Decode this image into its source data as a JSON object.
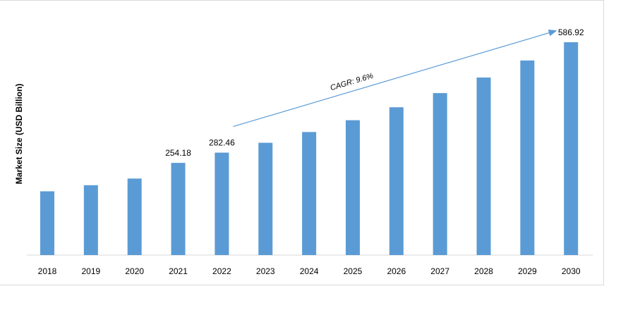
{
  "chart_data": {
    "type": "bar",
    "title": "",
    "xlabel": "",
    "ylabel": "Market Size (USD Billion)",
    "categories": [
      "2018",
      "2019",
      "2020",
      "2021",
      "2022",
      "2023",
      "2024",
      "2025",
      "2026",
      "2027",
      "2028",
      "2029",
      "2030"
    ],
    "values": [
      175.8,
      192.6,
      211.0,
      254.18,
      282.46,
      309.6,
      339.3,
      371.8,
      407.5,
      446.6,
      489.5,
      536.5,
      586.92
    ],
    "data_labels": {
      "2021": "254.18",
      "2022": "282.46",
      "2030": "586.92"
    },
    "annotation": "CAGR: 9.6%",
    "ylim": [
      0,
      610
    ],
    "grid": false,
    "legend": "none",
    "bar_color": "#5b9bd5",
    "arrow_color": "#5b9bd5"
  }
}
